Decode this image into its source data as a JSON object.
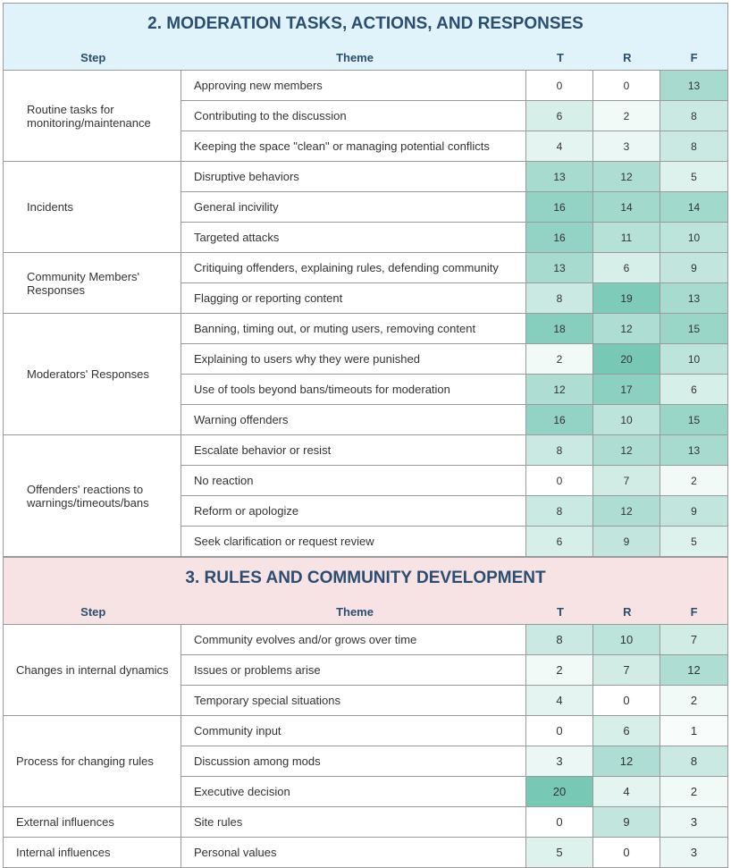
{
  "sections": [
    {
      "title": "2. MODERATION TASKS, ACTIONS, AND RESPONSES",
      "headers": {
        "step": "Step",
        "theme": "Theme",
        "t": "T",
        "r": "R",
        "f": "F"
      },
      "groups": [
        {
          "step": "Routine tasks for monitoring/maintenance",
          "rows": [
            {
              "theme": "Approving new members",
              "t": "0",
              "r": "0",
              "f": "13"
            },
            {
              "theme": "Contributing to the discussion",
              "t": "6",
              "r": "2",
              "f": "8"
            },
            {
              "theme": "Keeping the space \"clean\" or managing potential conflicts",
              "t": "4",
              "r": "3",
              "f": "8"
            }
          ]
        },
        {
          "step": "Incidents",
          "rows": [
            {
              "theme": "Disruptive behaviors",
              "t": "13",
              "r": "12",
              "f": "5"
            },
            {
              "theme": "General incivility",
              "t": "16",
              "r": "14",
              "f": "14"
            },
            {
              "theme": "Targeted attacks",
              "t": "16",
              "r": "11",
              "f": "10"
            }
          ]
        },
        {
          "step": "Community Members' Responses",
          "rows": [
            {
              "theme": "Critiquing offenders, explaining rules, defending community",
              "t": "13",
              "r": "6",
              "f": "9"
            },
            {
              "theme": "Flagging or reporting content",
              "t": "8",
              "r": "19",
              "f": "13"
            }
          ]
        },
        {
          "step": "Moderators' Responses",
          "rows": [
            {
              "theme": "Banning, timing out, or muting users, removing content",
              "t": "18",
              "r": "12",
              "f": "15"
            },
            {
              "theme": "Explaining to users why they were punished",
              "t": "2",
              "r": "20",
              "f": "10"
            },
            {
              "theme": "Use of tools beyond bans/timeouts for moderation",
              "t": "12",
              "r": "17",
              "f": "6"
            },
            {
              "theme": "Warning offenders",
              "t": "16",
              "r": "10",
              "f": "15"
            }
          ]
        },
        {
          "step": "Offenders' reactions to warnings/timeouts/bans",
          "rows": [
            {
              "theme": "Escalate behavior or resist",
              "t": "8",
              "r": "12",
              "f": "13"
            },
            {
              "theme": "No reaction",
              "t": "0",
              "r": "7",
              "f": "2"
            },
            {
              "theme": "Reform or apologize",
              "t": "8",
              "r": "12",
              "f": "9"
            },
            {
              "theme": "Seek clarification or request review",
              "t": "6",
              "r": "9",
              "f": "5"
            }
          ]
        }
      ]
    },
    {
      "title": "3. RULES AND COMMUNITY DEVELOPMENT",
      "headers": {
        "step": "Step",
        "theme": "Theme",
        "t": "T",
        "r": "R",
        "f": "F"
      },
      "groups": [
        {
          "step": "Changes in internal dynamics",
          "rows": [
            {
              "theme": "Community evolves and/or grows over time",
              "t": "8",
              "r": "10",
              "f": "7"
            },
            {
              "theme": "Issues or problems arise",
              "t": "2",
              "r": "7",
              "f": "12"
            },
            {
              "theme": "Temporary special situations",
              "t": "4",
              "r": "0",
              "f": "2"
            }
          ]
        },
        {
          "step": "Process for changing rules",
          "rows": [
            {
              "theme": "Community input",
              "t": "0",
              "r": "6",
              "f": "1"
            },
            {
              "theme": "Discussion among mods",
              "t": "3",
              "r": "12",
              "f": "8"
            },
            {
              "theme": "Executive decision",
              "t": "20",
              "r": "4",
              "f": "2"
            }
          ]
        },
        {
          "step": "External influences",
          "rows": [
            {
              "theme": "Site rules",
              "t": "0",
              "r": "9",
              "f": "3"
            }
          ]
        },
        {
          "step": "Internal influences",
          "rows": [
            {
              "theme": "Personal values",
              "t": "5",
              "r": "0",
              "f": "3"
            }
          ]
        }
      ]
    }
  ],
  "heat_color_scale": {
    "low": "#ffffff",
    "high": "#78c8b6",
    "max_value": 20
  }
}
